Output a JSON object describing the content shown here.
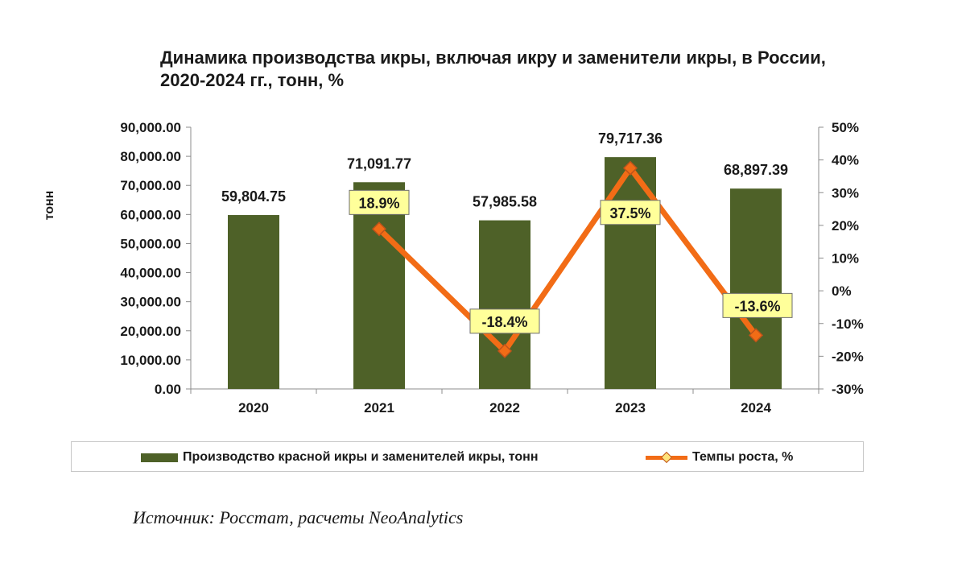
{
  "title_line1": "Динамика производства икры, включая икру и заменители икры, в России,",
  "title_line2": "2020-2024 гг., тонн, %",
  "source": "Источник: Росстат, расчеты NeoAnalytics",
  "colors": {
    "bar": "#4e6128",
    "line": "#f26c16",
    "marker_fill": "#ffe37a",
    "marker_stroke": "#c0531a",
    "label_bg": "#ffff9a"
  },
  "chart_data": {
    "type": "bar+line",
    "categories": [
      "2020",
      "2021",
      "2022",
      "2023",
      "2024"
    ],
    "series": [
      {
        "name": "Производство красной икры и заменителей икры, тонн",
        "type": "bar",
        "axis": "left",
        "values": [
          59804.75,
          71091.77,
          57985.58,
          79717.36,
          68897.39
        ],
        "labels": [
          "59,804.75",
          "71,091.77",
          "57,985.58",
          "79,717.36",
          "68,897.39"
        ]
      },
      {
        "name": "Темпы роста, %",
        "type": "line",
        "axis": "right",
        "values": [
          null,
          18.9,
          -18.4,
          37.5,
          -13.6
        ],
        "labels": [
          "",
          "18.9%",
          "-18.4%",
          "37.5%",
          "-13.6%"
        ]
      }
    ],
    "ylabel": "тонн",
    "ylim": [
      0,
      90000
    ],
    "yticks": [
      "0.00",
      "10,000.00",
      "20,000.00",
      "30,000.00",
      "40,000.00",
      "50,000.00",
      "60,000.00",
      "70,000.00",
      "80,000.00",
      "90,000.00"
    ],
    "y2lim": [
      -30,
      50
    ],
    "y2ticks": [
      "-30%",
      "-20%",
      "-10%",
      "0%",
      "10%",
      "20%",
      "30%",
      "40%",
      "50%"
    ],
    "legend": "bottom"
  },
  "legend": {
    "bar_label": "Производство красной икры и заменителей икры, тонн",
    "line_label": "Темпы роста, %"
  }
}
